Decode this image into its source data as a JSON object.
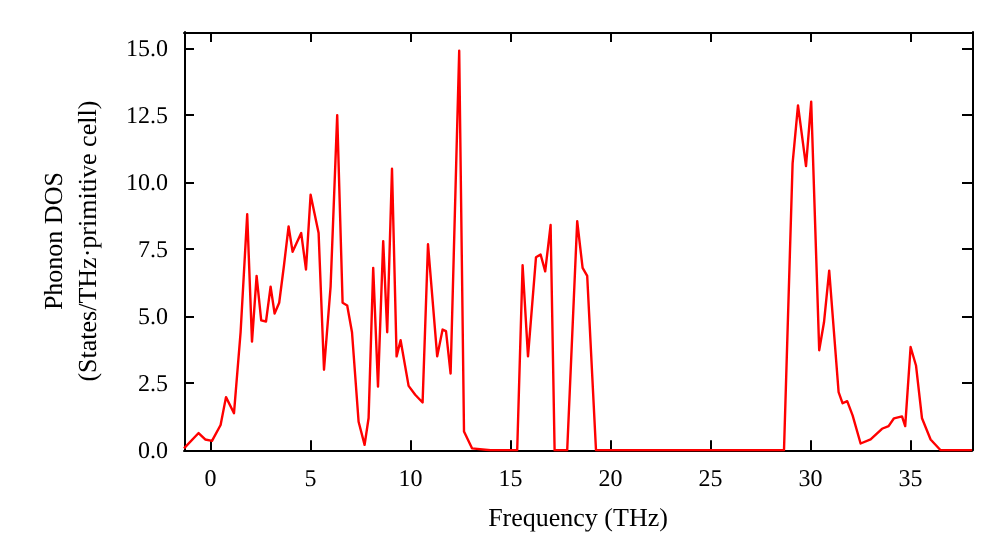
{
  "chart_data": {
    "type": "line",
    "xlabel": "Frequency (THz)",
    "ylabel": "Phonon DOS\n(States/THz·primitive cell)",
    "xlim": [
      -1.33,
      38.07
    ],
    "ylim": [
      0,
      15.6
    ],
    "xticks": [
      0,
      5,
      10,
      15,
      20,
      25,
      30,
      35
    ],
    "yticks": [
      {
        "value": 0,
        "label": "0.0"
      },
      {
        "value": 2.5,
        "label": "2.5"
      },
      {
        "value": 5,
        "label": "5.0"
      },
      {
        "value": 7.5,
        "label": "7.5"
      },
      {
        "value": 10,
        "label": "10.0"
      },
      {
        "value": 12.5,
        "label": "12.5"
      },
      {
        "value": 15,
        "label": "15.0"
      }
    ],
    "grid": false,
    "marker": "none",
    "line_style": "solid",
    "series": [
      {
        "color": "#ff0000",
        "x": [
          -1.33,
          -0.6,
          -0.27,
          0.07,
          0.5,
          0.77,
          1.17,
          1.5,
          1.83,
          2.07,
          2.3,
          2.53,
          2.77,
          3.0,
          3.2,
          3.43,
          3.67,
          3.9,
          4.1,
          4.53,
          4.77,
          5.0,
          5.4,
          5.67,
          6.0,
          6.33,
          6.6,
          6.83,
          7.07,
          7.4,
          7.7,
          7.9,
          8.13,
          8.37,
          8.63,
          8.83,
          9.07,
          9.3,
          9.5,
          9.9,
          10.23,
          10.6,
          10.87,
          11.33,
          11.6,
          11.77,
          12.0,
          12.43,
          12.67,
          13.07,
          14,
          15.33,
          15.6,
          15.87,
          16.27,
          16.5,
          16.73,
          17.0,
          17.2,
          17.83,
          18.33,
          18.6,
          18.83,
          19.27,
          28.67,
          29.1,
          29.37,
          29.77,
          30.03,
          30.43,
          30.67,
          30.93,
          31.4,
          31.6,
          31.83,
          32.1,
          32.5,
          33.0,
          33.57,
          33.9,
          34.17,
          34.57,
          34.73,
          35.0,
          35.27,
          35.57,
          36.0,
          36.5,
          38.07
        ],
        "values": [
          0.07,
          0.64,
          0.4,
          0.35,
          0.94,
          1.98,
          1.38,
          4.4,
          8.8,
          4.05,
          6.5,
          4.84,
          4.8,
          6.1,
          5.1,
          5.5,
          6.9,
          8.35,
          7.4,
          8.1,
          6.74,
          9.53,
          8.1,
          3.0,
          6.1,
          12.5,
          5.5,
          5.4,
          4.4,
          1.06,
          0.2,
          1.2,
          6.8,
          2.37,
          7.8,
          4.4,
          10.5,
          3.5,
          4.1,
          2.4,
          2.07,
          1.78,
          7.68,
          3.5,
          4.5,
          4.44,
          2.86,
          14.9,
          0.7,
          0.07,
          0,
          0,
          6.9,
          3.5,
          7.2,
          7.3,
          6.67,
          8.4,
          0,
          0,
          8.54,
          6.8,
          6.5,
          0,
          0,
          10.7,
          12.86,
          10.6,
          13.0,
          3.73,
          4.77,
          6.7,
          2.17,
          1.75,
          1.83,
          1.3,
          0.25,
          0.4,
          0.8,
          0.9,
          1.19,
          1.26,
          0.9,
          3.85,
          3.16,
          1.19,
          0.4,
          0,
          0
        ]
      }
    ]
  }
}
